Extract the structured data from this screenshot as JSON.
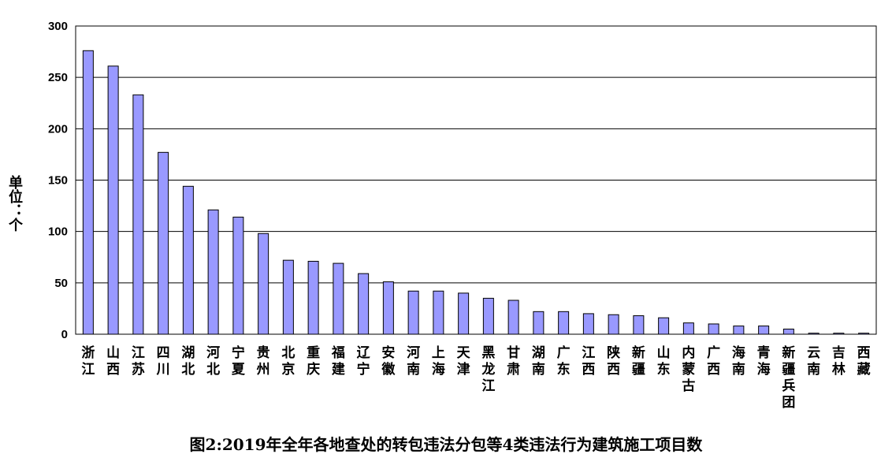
{
  "chart_data": {
    "type": "bar",
    "title": "图2:2019年全年各地查处的转包违法分包等4类违法行为建筑施工项目数",
    "ylabel": "单位：个",
    "xlabel": "",
    "ylim": [
      0,
      300
    ],
    "yticks": [
      "0",
      "50",
      "100",
      "150",
      "200",
      "250",
      "300"
    ],
    "grid": true,
    "legend": "none",
    "bar_color": "#9999ff",
    "bar_edge_color": "#000000",
    "categories": [
      "浙江",
      "山西",
      "江苏",
      "四川",
      "湖北",
      "河北",
      "宁夏",
      "贵州",
      "北京",
      "重庆",
      "福建",
      "辽宁",
      "安徽",
      "河南",
      "上海",
      "天津",
      "黑龙江",
      "甘肃",
      "湖南",
      "广东",
      "江西",
      "陕西",
      "新疆",
      "山东",
      "内蒙古",
      "广西",
      "海南",
      "青海",
      "新疆兵团",
      "云南",
      "吉林",
      "西藏"
    ],
    "values": [
      276,
      261,
      233,
      177,
      144,
      121,
      114,
      98,
      72,
      71,
      69,
      59,
      51,
      42,
      42,
      40,
      35,
      33,
      22,
      22,
      20,
      19,
      18,
      16,
      11,
      10,
      8,
      8,
      5,
      1,
      1,
      1
    ]
  }
}
